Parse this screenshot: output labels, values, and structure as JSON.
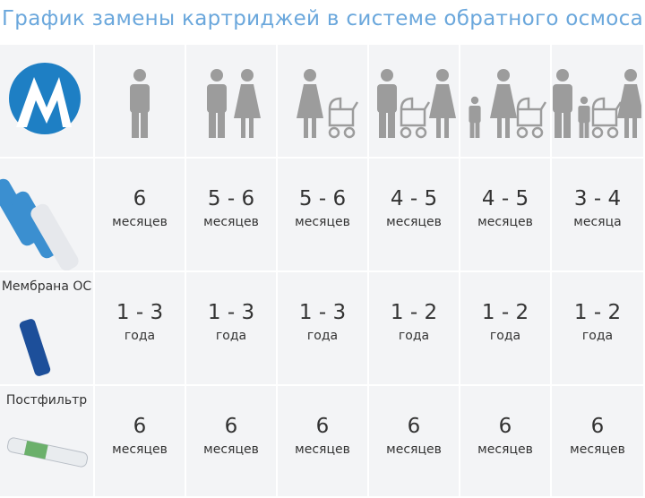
{
  "title": "График замены картриджей в системе обратного осмоса",
  "rows": [
    {
      "cells": [
        {
          "value": "6",
          "unit": "месяцев"
        },
        {
          "value": "5 - 6",
          "unit": "месяцев"
        },
        {
          "value": "5 - 6",
          "unit": "месяцев"
        },
        {
          "value": "4 - 5",
          "unit": "месяцев"
        },
        {
          "value": "4 - 5",
          "unit": "месяцев"
        },
        {
          "value": "3 - 4",
          "unit": "месяца"
        }
      ]
    },
    {
      "label": "Мембрана ОС",
      "cells": [
        {
          "value": "1 - 3",
          "unit": "года"
        },
        {
          "value": "1 - 3",
          "unit": "года"
        },
        {
          "value": "1 - 3",
          "unit": "года"
        },
        {
          "value": "1 - 2",
          "unit": "года"
        },
        {
          "value": "1 - 2",
          "unit": "года"
        },
        {
          "value": "1 - 2",
          "unit": "года"
        }
      ]
    },
    {
      "label": "Постфильтр",
      "cells": [
        {
          "value": "6",
          "unit": "месяцев"
        },
        {
          "value": "6",
          "unit": "месяцев"
        },
        {
          "value": "6",
          "unit": "месяцев"
        },
        {
          "value": "6",
          "unit": "месяцев"
        },
        {
          "value": "6",
          "unit": "месяцев"
        },
        {
          "value": "6",
          "unit": "месяцев"
        }
      ]
    }
  ]
}
